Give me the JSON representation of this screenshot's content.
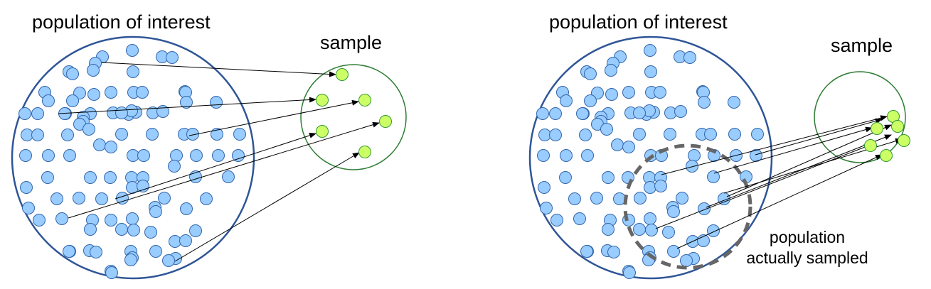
{
  "left_panel": {
    "population_label": "population of interest",
    "sample_label": "sample"
  },
  "right_panel": {
    "population_label": "population of interest",
    "sample_label": "sample",
    "subset_label_line1": "population",
    "subset_label_line2": "actually sampled"
  },
  "colors": {
    "population_dot": "#99CCFF",
    "population_dot_stroke": "#3366AA",
    "population_circle": "#2F5597",
    "sample_dot": "#CCFF66",
    "sample_dot_stroke": "#339933",
    "sample_circle": "#2E7D32",
    "subset_dash": "#666666",
    "arrow": "#000000"
  }
}
